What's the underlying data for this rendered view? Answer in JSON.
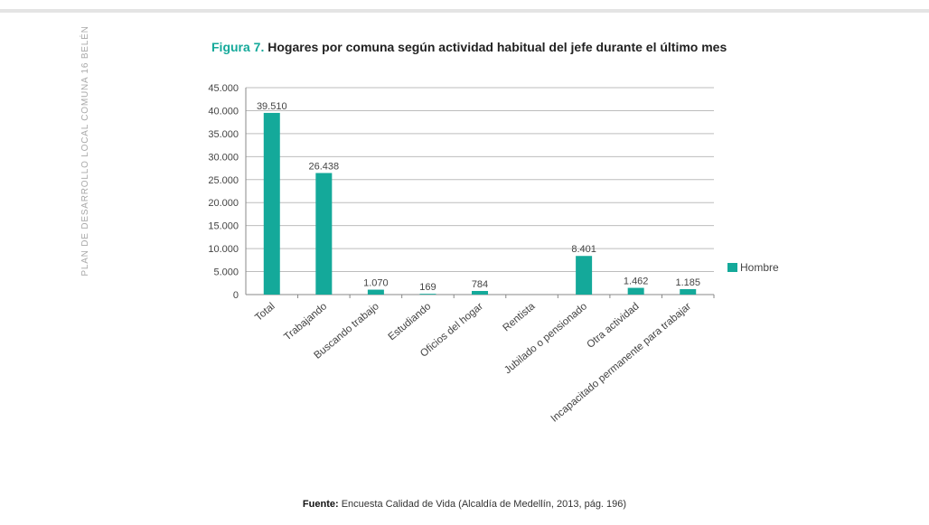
{
  "sidebar": {
    "label": "PLAN DE DESARROLLO LOCAL COMUNA 16 BELÉN"
  },
  "figure": {
    "number": "Figura 7.",
    "title": "Hogares por comuna según actividad habitual del jefe durante el último mes"
  },
  "source": {
    "label": "Fuente:",
    "text": "Encuesta Calidad de Vida (Alcaldía de Medellín, 2013, pág. 196)"
  },
  "chart_data": {
    "type": "bar",
    "categories": [
      "Total",
      "Trabajando",
      "Buscando trabajo",
      "Estudiando",
      "Oficios del hogar",
      "Rentista",
      "Jubilado o pensionado",
      "Otra actividad",
      "Incapacitado permanente para trabajar"
    ],
    "series": [
      {
        "name": "Hombre",
        "values": [
          39510,
          26438,
          1070,
          169,
          784,
          0,
          8401,
          1462,
          1185
        ],
        "labels": [
          "39.510",
          "26.438",
          "1.070",
          "169",
          "784",
          "",
          "8.401",
          "1.462",
          "1.185"
        ],
        "color": "#14a99a"
      }
    ],
    "ylim": [
      0,
      45000
    ],
    "yticks": [
      0,
      5000,
      10000,
      15000,
      20000,
      25000,
      30000,
      35000,
      40000,
      45000
    ],
    "ytick_labels": [
      "0",
      "5.000",
      "10.000",
      "15.000",
      "20.000",
      "25.000",
      "30.000",
      "35.000",
      "40.000",
      "45.000"
    ],
    "grid": true,
    "legend": "right"
  }
}
